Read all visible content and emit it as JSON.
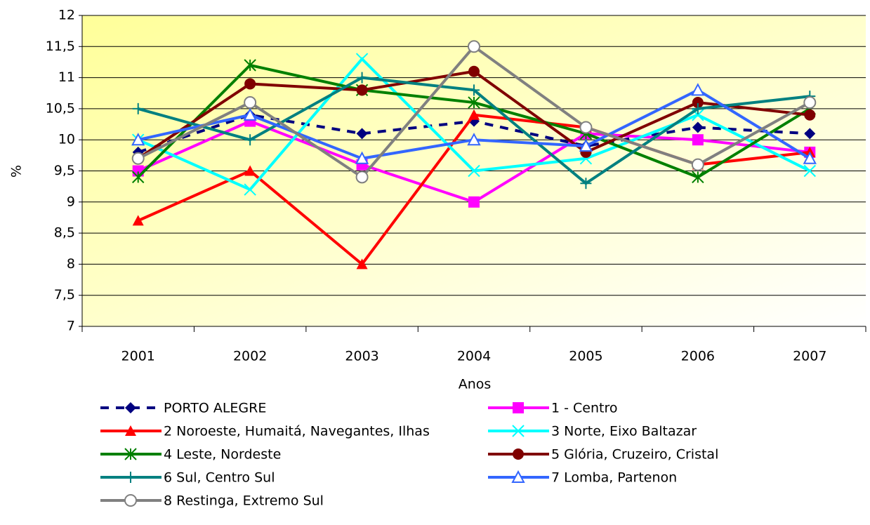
{
  "chart_data": {
    "type": "line",
    "categories": [
      "2001",
      "2002",
      "2003",
      "2004",
      "2005",
      "2006",
      "2007"
    ],
    "xlabel": "Anos",
    "ylabel": "%",
    "ylim": [
      7,
      12
    ],
    "yticks": [
      7,
      {
        "value": 7.5,
        "label": "7,5"
      },
      8,
      {
        "value": 8.5,
        "label": "8,5"
      },
      9,
      {
        "value": 9.5,
        "label": "9,5"
      },
      10,
      {
        "value": 10.5,
        "label": "10,5"
      },
      11,
      {
        "value": 11.5,
        "label": "11,5"
      },
      12
    ],
    "grid": true,
    "series": [
      {
        "name": "PORTO ALEGRE",
        "color": "#000080",
        "marker": "diamond",
        "dashed": true,
        "values": [
          9.8,
          10.4,
          10.1,
          10.3,
          9.9,
          10.2,
          10.1
        ]
      },
      {
        "name": "1 - Centro",
        "color": "#ff00ff",
        "marker": "square",
        "values": [
          9.5,
          10.3,
          9.6,
          9.0,
          10.1,
          10.0,
          9.8
        ]
      },
      {
        "name": "2 Noroeste, Humaitá, Navegantes, Ilhas",
        "color": "#ff0000",
        "marker": "triangle",
        "values": [
          8.7,
          9.5,
          8.0,
          10.4,
          10.2,
          9.6,
          9.8
        ]
      },
      {
        "name": "3 Norte, Eixo Baltazar",
        "color": "#00ffff",
        "marker": "x",
        "values": [
          10.0,
          9.2,
          11.3,
          9.5,
          9.7,
          10.4,
          9.5
        ]
      },
      {
        "name": "4 Leste, Nordeste",
        "color": "#008000",
        "marker": "asterisk",
        "values": [
          9.4,
          11.2,
          10.8,
          10.6,
          10.1,
          9.4,
          10.5
        ]
      },
      {
        "name": "5 Glória, Cruzeiro, Cristal",
        "color": "#800000",
        "marker": "circle",
        "values": [
          9.7,
          10.9,
          10.8,
          11.1,
          9.8,
          10.6,
          10.4
        ]
      },
      {
        "name": "6 Sul, Centro Sul",
        "color": "#008080",
        "marker": "plus",
        "values": [
          10.5,
          10.0,
          11.0,
          10.8,
          9.3,
          10.5,
          10.7
        ]
      },
      {
        "name": "7 Lomba, Partenon",
        "color": "#3366ff",
        "marker": "triangle-open",
        "values": [
          10.0,
          10.4,
          9.7,
          10.0,
          9.9,
          10.8,
          9.7
        ]
      },
      {
        "name": "8 Restinga, Extremo Sul",
        "color": "#808080",
        "marker": "circle-open",
        "values": [
          9.7,
          10.6,
          9.4,
          11.5,
          10.2,
          9.6,
          10.6
        ]
      }
    ]
  }
}
